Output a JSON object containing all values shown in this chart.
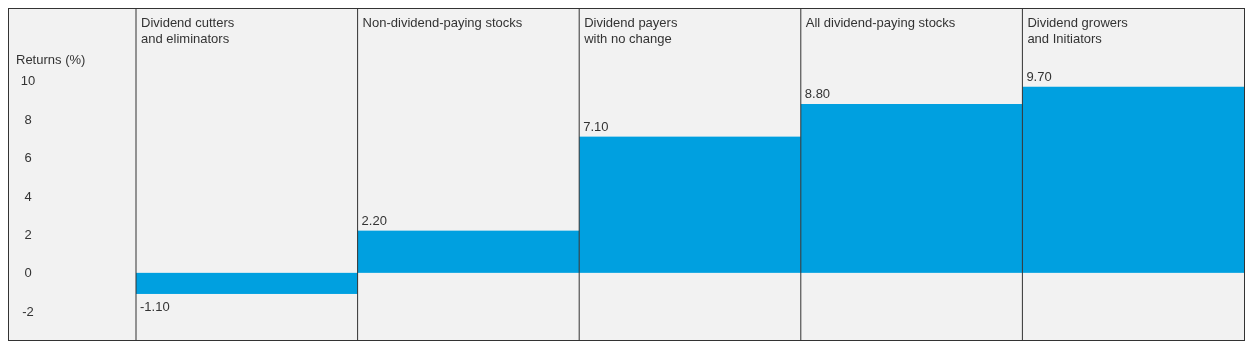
{
  "chart_data": {
    "type": "bar",
    "ylabel": "Returns (%)",
    "categories": [
      "Dividend cutters\nand eliminators",
      "Non-dividend-paying stocks",
      "Dividend payers\nwith no change",
      "All dividend-paying stocks",
      "Dividend growers\nand Initiators"
    ],
    "values": [
      -1.1,
      2.2,
      7.1,
      8.8,
      9.7
    ],
    "color": "#00a0e0",
    "value_labels": [
      "-1.10",
      "2.20",
      "7.10",
      "8.80",
      "9.70"
    ],
    "ylim": [
      -3.5,
      13.7
    ],
    "yticks": [
      -2,
      0,
      2,
      4,
      6,
      8,
      10
    ],
    "grid": false
  }
}
